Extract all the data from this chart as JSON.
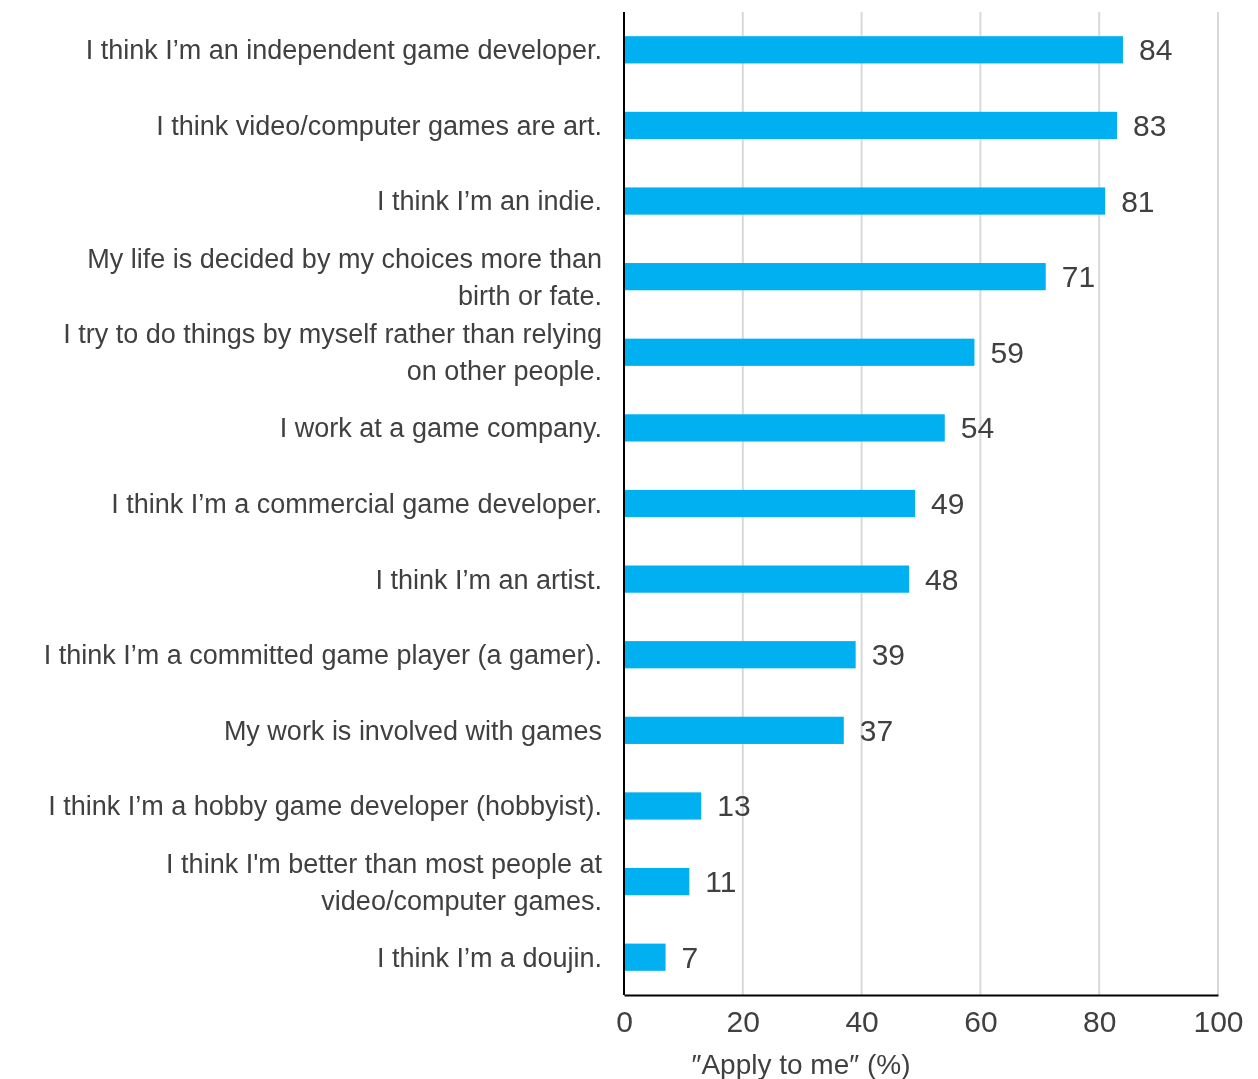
{
  "chart_data": {
    "type": "bar",
    "orientation": "horizontal",
    "categories": [
      "I think I’m an independent game developer.",
      "I think video/computer games are art.",
      "I think I’m an indie.",
      "My life is decided by my choices more than birth or fate.",
      "I try to do things by myself rather than relying on other people.",
      "I work at a game company.",
      "I think I’m a commercial game developer.",
      "I think I’m an artist.",
      "I think I’m a committed game player (a gamer).",
      "My work is involved with games",
      "I think I’m a hobby game developer (hobbyist).",
      "I think I'm better than most people at video/computer games.",
      "I think I’m a doujin."
    ],
    "values": [
      84,
      83,
      81,
      71,
      59,
      54,
      49,
      48,
      39,
      37,
      13,
      11,
      7
    ],
    "color": "#00b0f0",
    "data_labels": true,
    "xlim": [
      0,
      100
    ],
    "xticks": [
      0,
      20,
      40,
      60,
      80,
      100
    ],
    "grid": "x",
    "xlabel": "″Apply to me″ (%)"
  }
}
